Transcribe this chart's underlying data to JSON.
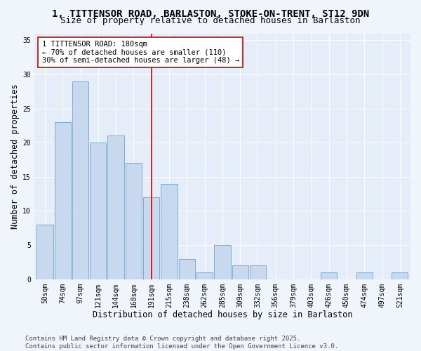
{
  "title_line1": "1, TITTENSOR ROAD, BARLASTON, STOKE-ON-TRENT, ST12 9DN",
  "title_line2": "Size of property relative to detached houses in Barlaston",
  "xlabel": "Distribution of detached houses by size in Barlaston",
  "ylabel": "Number of detached properties",
  "categories": [
    "50sqm",
    "74sqm",
    "97sqm",
    "121sqm",
    "144sqm",
    "168sqm",
    "191sqm",
    "215sqm",
    "238sqm",
    "262sqm",
    "285sqm",
    "309sqm",
    "332sqm",
    "356sqm",
    "379sqm",
    "403sqm",
    "426sqm",
    "450sqm",
    "474sqm",
    "497sqm",
    "521sqm"
  ],
  "values": [
    8,
    23,
    29,
    20,
    21,
    17,
    12,
    14,
    3,
    1,
    5,
    2,
    2,
    0,
    0,
    0,
    1,
    0,
    1,
    0,
    1
  ],
  "bar_color": "#c8d8ee",
  "bar_edge_color": "#7aaed6",
  "vline_x_index": 6,
  "vline_color": "#cc0000",
  "annotation_text": "1 TITTENSOR ROAD: 180sqm\n← 70% of detached houses are smaller (110)\n30% of semi-detached houses are larger (48) →",
  "annotation_box_color": "#ffffff",
  "annotation_box_edge": "#cc0000",
  "ylim": [
    0,
    36
  ],
  "yticks": [
    0,
    5,
    10,
    15,
    20,
    25,
    30,
    35
  ],
  "footnote": "Contains HM Land Registry data © Crown copyright and database right 2025.\nContains public sector information licensed under the Open Government Licence v3.0.",
  "bg_color": "#f0f4fb",
  "plot_bg_color": "#e4edf8",
  "grid_color": "#ffffff",
  "title_fontsize": 10,
  "subtitle_fontsize": 9,
  "label_fontsize": 8.5,
  "tick_fontsize": 7,
  "annotation_fontsize": 7.5,
  "footnote_fontsize": 6.5
}
